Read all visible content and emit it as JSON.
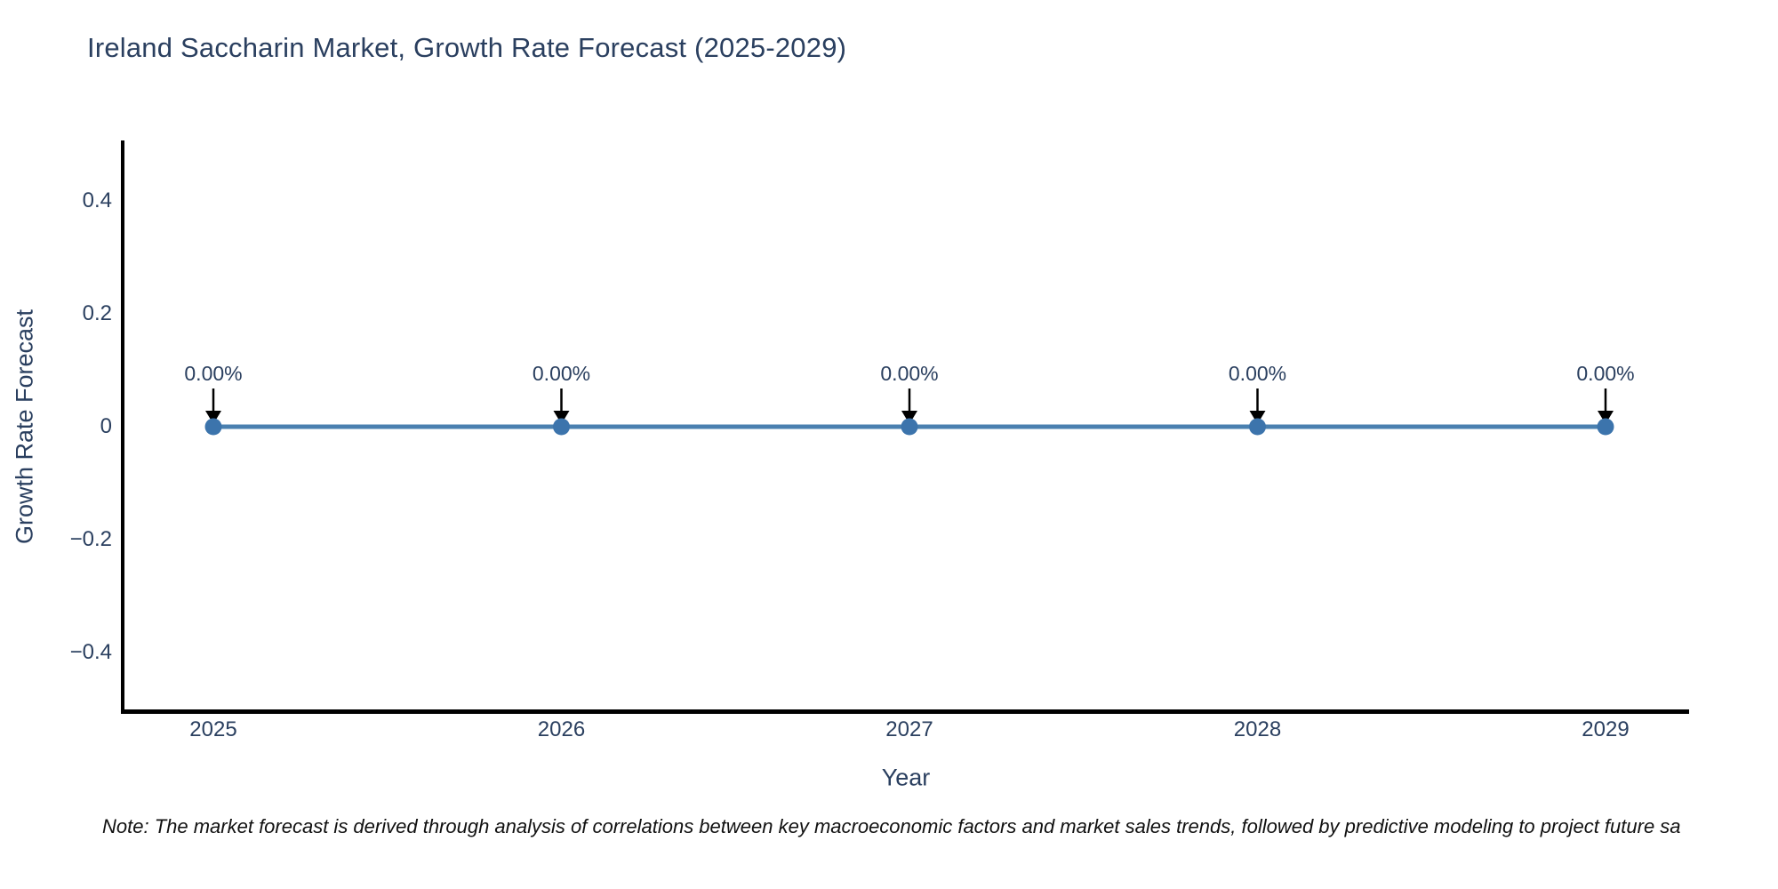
{
  "note": "Note: The market forecast is derived through analysis of correlations between key macroeconomic factors and market sales trends, followed by predictive modeling to project future sa",
  "chart_data": {
    "type": "line",
    "title": "Ireland Saccharin Market, Growth Rate Forecast (2025-2029)",
    "xlabel": "Year",
    "ylabel": "Growth Rate Forecast",
    "x": [
      "2025",
      "2026",
      "2027",
      "2028",
      "2029"
    ],
    "series": [
      {
        "name": "Growth Rate Forecast",
        "values": [
          0,
          0,
          0,
          0,
          0
        ]
      }
    ],
    "point_labels": [
      "0.00%",
      "0.00%",
      "0.00%",
      "0.00%",
      "0.00%"
    ],
    "ylim": [
      -0.5,
      0.5
    ],
    "ytick_values": [
      0.4,
      0.2,
      0,
      -0.2,
      -0.4
    ],
    "ytick_labels": [
      "0.4",
      "0.2",
      "0",
      "−0.2",
      "−0.4"
    ],
    "grid": false,
    "legend": "none",
    "colors": {
      "line": "#4a80b0",
      "marker": "#3c74ac",
      "arrow": "#000000",
      "axis_line": "#000000",
      "text": "#2a3f5f",
      "note_text": "#111111"
    }
  }
}
